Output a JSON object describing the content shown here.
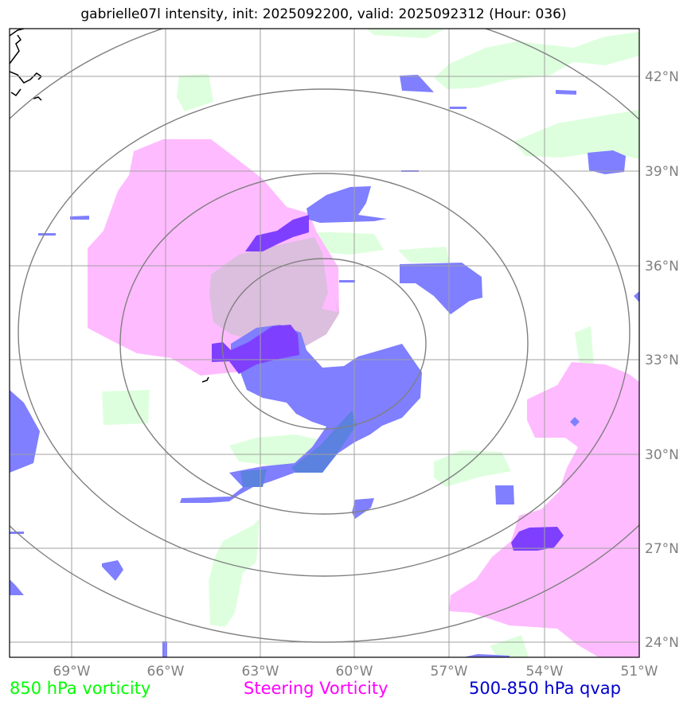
{
  "title": "gabrielle07l intensity, init: 2025092200, valid: 2025092312 (Hour: 036)",
  "longitude_labels": [
    "69°W",
    "66°W",
    "63°W",
    "60°W",
    "57°W",
    "54°W",
    "51°W"
  ],
  "latitude_labels": [
    "42°N",
    "39°N",
    "36°N",
    "33°N",
    "30°N",
    "27°N",
    "24°N"
  ],
  "legend": {
    "item1": "850 hPa vorticity",
    "item2": "Steering Vorticity",
    "item3": "500-850 hPa qvap"
  },
  "colors": {
    "vorticity_850": "#00ff00",
    "steering_vorticity": "#ff00ff",
    "qvap": "#0000cd",
    "grid": "#a0a0a0",
    "range_rings": "#808080"
  }
}
